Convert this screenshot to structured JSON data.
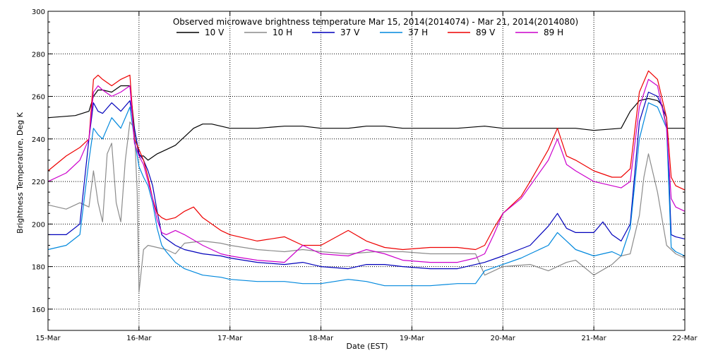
{
  "chart_data": {
    "type": "line",
    "title": "Observed microwave brightness temperature Mar 15, 2014(2014074) - Mar 21, 2014(2014080)",
    "xlabel": "Date (EST)",
    "ylabel": "Brightness Temperature, Deg K",
    "ylim": [
      150,
      300
    ],
    "y_ticks": [
      160,
      180,
      200,
      220,
      240,
      260,
      280,
      300
    ],
    "xlim": [
      0,
      7
    ],
    "x_ticks": [
      0,
      1,
      2,
      3,
      4,
      5,
      6,
      7
    ],
    "x_tick_labels": [
      "15-Mar",
      "16-Mar",
      "17-Mar",
      "18-Mar",
      "19-Mar",
      "20-Mar",
      "21-Mar",
      "22-Mar"
    ],
    "grid": true,
    "legend_placement": "top",
    "series": [
      {
        "name": "10 V",
        "color": "#000000",
        "x": [
          0,
          0.3,
          0.45,
          0.5,
          0.55,
          0.6,
          0.7,
          0.8,
          0.9,
          0.95,
          1.0,
          1.05,
          1.1,
          1.2,
          1.3,
          1.4,
          1.5,
          1.6,
          1.7,
          1.8,
          1.9,
          2.0,
          2.3,
          2.6,
          2.8,
          3.0,
          3.3,
          3.5,
          3.7,
          3.9,
          4.2,
          4.5,
          4.8,
          5.0,
          5.3,
          5.6,
          5.8,
          6.0,
          6.3,
          6.4,
          6.5,
          6.6,
          6.7,
          6.75,
          6.8,
          6.9,
          7.0
        ],
        "y": [
          250,
          251,
          253,
          260,
          263,
          263,
          262,
          265,
          265,
          245,
          232,
          232,
          230,
          233,
          235,
          237,
          241,
          245,
          247,
          247,
          246,
          245,
          245,
          246,
          246,
          245,
          245,
          246,
          246,
          245,
          245,
          245,
          246,
          245,
          245,
          245,
          245,
          244,
          245,
          253,
          258,
          259,
          258,
          256,
          245,
          245,
          245
        ]
      },
      {
        "name": "10 H",
        "color": "#8c8c8c",
        "x": [
          0,
          0.2,
          0.35,
          0.45,
          0.5,
          0.55,
          0.6,
          0.65,
          0.7,
          0.75,
          0.8,
          0.85,
          0.9,
          0.95,
          0.98,
          1.0,
          1.05,
          1.1,
          1.2,
          1.3,
          1.4,
          1.5,
          1.7,
          1.9,
          2.0,
          2.3,
          2.6,
          2.8,
          3.0,
          3.3,
          3.6,
          3.9,
          4.2,
          4.5,
          4.7,
          4.8,
          5.0,
          5.3,
          5.5,
          5.7,
          5.8,
          6.0,
          6.2,
          6.3,
          6.4,
          6.5,
          6.55,
          6.6,
          6.7,
          6.8,
          6.9,
          7.0
        ],
        "y": [
          209,
          207,
          210,
          208,
          225,
          210,
          201,
          233,
          238,
          210,
          201,
          230,
          248,
          245,
          215,
          168,
          188,
          190,
          189,
          188,
          186,
          191,
          192,
          191,
          190,
          188,
          187,
          188,
          187,
          186,
          187,
          187,
          186,
          186,
          186,
          176,
          180,
          181,
          178,
          182,
          183,
          176,
          181,
          185,
          186,
          204,
          222,
          233,
          215,
          190,
          186,
          184
        ]
      },
      {
        "name": "37 V",
        "color": "#0000bb",
        "x": [
          0,
          0.2,
          0.35,
          0.45,
          0.5,
          0.55,
          0.6,
          0.7,
          0.8,
          0.9,
          0.95,
          1.0,
          1.05,
          1.1,
          1.15,
          1.2,
          1.25,
          1.3,
          1.4,
          1.5,
          1.7,
          1.9,
          2.0,
          2.3,
          2.6,
          2.8,
          3.0,
          3.3,
          3.5,
          3.7,
          3.9,
          4.2,
          4.5,
          4.8,
          5.0,
          5.3,
          5.5,
          5.6,
          5.7,
          5.8,
          6.0,
          6.1,
          6.2,
          6.3,
          6.4,
          6.5,
          6.6,
          6.7,
          6.8,
          6.85,
          6.9,
          7.0
        ],
        "y": [
          195,
          195,
          200,
          240,
          257,
          253,
          252,
          257,
          253,
          258,
          245,
          233,
          230,
          225,
          218,
          206,
          195,
          193,
          190,
          188,
          186,
          185,
          184,
          182,
          181,
          182,
          180,
          179,
          181,
          181,
          180,
          179,
          179,
          182,
          185,
          190,
          199,
          205,
          198,
          196,
          196,
          201,
          195,
          192,
          200,
          248,
          262,
          260,
          250,
          195,
          194,
          193
        ]
      },
      {
        "name": "37 H",
        "color": "#0088dd",
        "x": [
          0,
          0.2,
          0.35,
          0.45,
          0.5,
          0.55,
          0.6,
          0.7,
          0.8,
          0.9,
          0.95,
          1.0,
          1.05,
          1.1,
          1.15,
          1.2,
          1.25,
          1.3,
          1.4,
          1.5,
          1.7,
          1.9,
          2.0,
          2.3,
          2.6,
          2.8,
          3.0,
          3.3,
          3.5,
          3.7,
          3.9,
          4.2,
          4.5,
          4.7,
          4.8,
          5.0,
          5.2,
          5.3,
          5.5,
          5.6,
          5.7,
          5.8,
          6.0,
          6.1,
          6.2,
          6.3,
          6.4,
          6.5,
          6.6,
          6.7,
          6.8,
          6.85,
          6.9,
          7.0
        ],
        "y": [
          188,
          190,
          195,
          230,
          245,
          242,
          240,
          250,
          245,
          255,
          240,
          227,
          222,
          218,
          210,
          198,
          190,
          187,
          182,
          179,
          176,
          175,
          174,
          173,
          173,
          172,
          172,
          174,
          173,
          171,
          171,
          171,
          172,
          172,
          178,
          181,
          184,
          186,
          190,
          196,
          192,
          188,
          185,
          186,
          187,
          185,
          198,
          240,
          257,
          255,
          245,
          189,
          187,
          185
        ]
      },
      {
        "name": "89 V",
        "color": "#ee0000",
        "x": [
          0,
          0.2,
          0.35,
          0.45,
          0.5,
          0.55,
          0.6,
          0.7,
          0.8,
          0.9,
          0.95,
          1.0,
          1.05,
          1.1,
          1.15,
          1.2,
          1.25,
          1.3,
          1.4,
          1.5,
          1.6,
          1.7,
          1.9,
          2.0,
          2.3,
          2.6,
          2.8,
          3.0,
          3.3,
          3.5,
          3.7,
          3.9,
          4.2,
          4.5,
          4.7,
          4.8,
          4.9,
          5.0,
          5.2,
          5.3,
          5.5,
          5.6,
          5.7,
          5.8,
          6.0,
          6.2,
          6.3,
          6.4,
          6.5,
          6.6,
          6.7,
          6.8,
          6.85,
          6.9,
          7.0
        ],
        "y": [
          225,
          232,
          236,
          240,
          268,
          270,
          268,
          265,
          268,
          270,
          240,
          235,
          230,
          222,
          212,
          205,
          203,
          202,
          203,
          206,
          208,
          203,
          197,
          195,
          192,
          194,
          190,
          190,
          197,
          192,
          189,
          188,
          189,
          189,
          188,
          190,
          198,
          205,
          213,
          220,
          235,
          245,
          232,
          230,
          225,
          222,
          222,
          226,
          262,
          272,
          268,
          250,
          222,
          218,
          216
        ]
      },
      {
        "name": "89 H",
        "color": "#cc00cc",
        "x": [
          0,
          0.2,
          0.35,
          0.45,
          0.5,
          0.55,
          0.6,
          0.7,
          0.8,
          0.9,
          0.95,
          1.0,
          1.05,
          1.1,
          1.15,
          1.2,
          1.25,
          1.3,
          1.4,
          1.5,
          1.7,
          1.9,
          2.0,
          2.3,
          2.6,
          2.8,
          3.0,
          3.3,
          3.5,
          3.7,
          3.9,
          4.2,
          4.5,
          4.7,
          4.8,
          4.9,
          5.0,
          5.2,
          5.3,
          5.5,
          5.6,
          5.7,
          5.8,
          6.0,
          6.2,
          6.3,
          6.4,
          6.5,
          6.6,
          6.7,
          6.8,
          6.85,
          6.9,
          7.0
        ],
        "y": [
          220,
          224,
          230,
          240,
          262,
          265,
          263,
          260,
          262,
          265,
          238,
          232,
          228,
          220,
          212,
          202,
          196,
          195,
          197,
          195,
          190,
          186,
          185,
          183,
          182,
          190,
          186,
          185,
          188,
          186,
          183,
          182,
          182,
          184,
          186,
          195,
          205,
          212,
          218,
          230,
          240,
          228,
          225,
          220,
          218,
          217,
          220,
          255,
          268,
          265,
          245,
          212,
          208,
          206
        ]
      }
    ]
  }
}
